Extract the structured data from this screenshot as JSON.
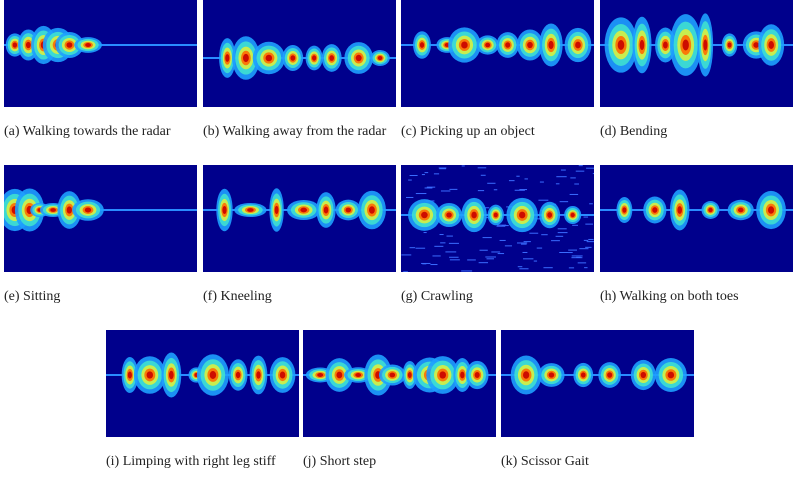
{
  "figures": [
    {
      "caption": "(a) Walking towards the radar"
    },
    {
      "caption": "(b) Walking away from the radar"
    },
    {
      "caption": "(c) Picking up an object"
    },
    {
      "caption": "(d) Bending"
    },
    {
      "caption": "(e) Sitting"
    },
    {
      "caption": "(f) Kneeling"
    },
    {
      "caption": "(g) Crawling"
    },
    {
      "caption": "(h) Walking on both toes"
    },
    {
      "caption": "(i) Limping with right leg stiff"
    },
    {
      "caption": "(j) Short step"
    },
    {
      "caption": "(k) Scissor Gait"
    }
  ]
}
